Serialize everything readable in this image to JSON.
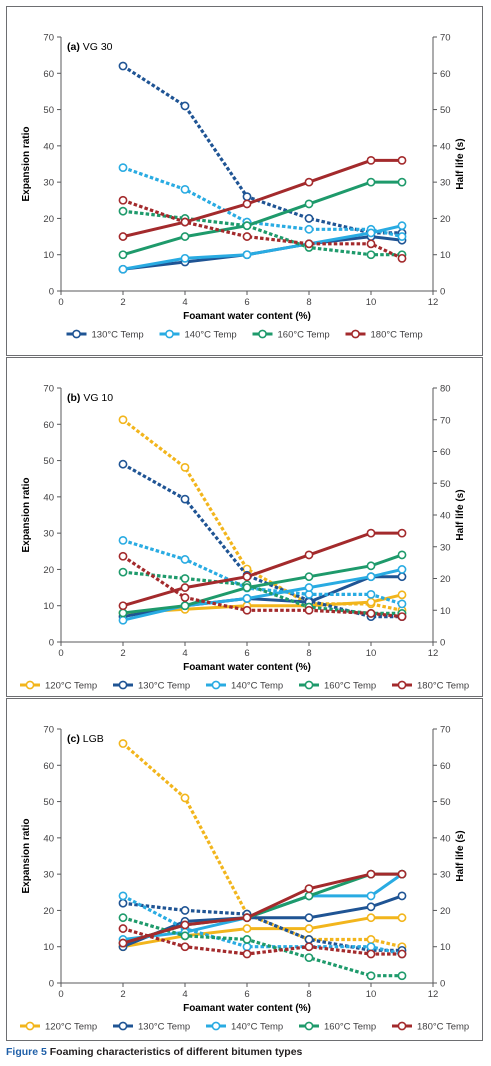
{
  "figure": {
    "caption_label": "Figure 5",
    "caption_text": " Foaming characteristics of different bitumen types"
  },
  "colors": {
    "120C": "#f2b51c",
    "130C": "#1f5494",
    "140C": "#29abe2",
    "160C": "#1e9a6b",
    "180C": "#a32a2c",
    "axis": "#58595b",
    "panel_border": "#6d6e71",
    "caption_label": "#1f5fa8"
  },
  "chart_data": [
    {
      "type": "line",
      "title": "(a) VG 30",
      "xlabel": "Foamant water content (%)",
      "ylabel": "Expansion ratio",
      "y2label": "Half life (s)",
      "xlim": [
        0,
        12
      ],
      "xticks": [
        0,
        2,
        4,
        6,
        8,
        10,
        12
      ],
      "ylim": [
        0,
        70
      ],
      "yticks": [
        0,
        10,
        20,
        30,
        40,
        50,
        60,
        70
      ],
      "y2lim": [
        0,
        70
      ],
      "y2ticks": [
        0,
        10,
        20,
        30,
        40,
        50,
        60,
        70
      ],
      "x": [
        2,
        4,
        6,
        8,
        10,
        11
      ],
      "legend": "bottom",
      "line_styles": {
        "solid": "Expansion ratio",
        "dashed": "Half life"
      },
      "series": [
        {
          "name": "130°C Temp",
          "key": "130C",
          "expansion": [
            6,
            8,
            10,
            13,
            15,
            14
          ],
          "half_life": [
            62,
            51,
            26,
            20,
            16,
            16
          ]
        },
        {
          "name": "140°C Temp",
          "key": "140C",
          "expansion": [
            6,
            9,
            10,
            13,
            16,
            18
          ],
          "half_life": [
            34,
            28,
            19,
            17,
            17,
            15
          ]
        },
        {
          "name": "160°C Temp",
          "key": "160C",
          "expansion": [
            10,
            15,
            18,
            24,
            30,
            30
          ],
          "half_life": [
            22,
            20,
            18,
            12,
            10,
            10
          ]
        },
        {
          "name": "180°C Temp",
          "key": "180C",
          "expansion": [
            15,
            19,
            24,
            30,
            36,
            36
          ],
          "half_life": [
            25,
            19,
            15,
            13,
            13,
            9
          ]
        }
      ]
    },
    {
      "type": "line",
      "title": "(b) VG 10",
      "xlabel": "Foamant water content (%)",
      "ylabel": "Expansion ratio",
      "y2label": "Half life (s)",
      "xlim": [
        0,
        12
      ],
      "xticks": [
        0,
        2,
        4,
        6,
        8,
        10,
        12
      ],
      "ylim": [
        0,
        70
      ],
      "yticks": [
        0,
        10,
        20,
        30,
        40,
        50,
        60,
        70
      ],
      "y2lim": [
        0,
        80
      ],
      "y2ticks": [
        0,
        10,
        20,
        30,
        40,
        50,
        60,
        70,
        80
      ],
      "x": [
        2,
        4,
        6,
        8,
        10,
        11
      ],
      "legend": "bottom",
      "line_styles": {
        "solid": "Expansion ratio",
        "dashed": "Half life"
      },
      "series": [
        {
          "name": "120°C Temp",
          "key": "120C",
          "expansion": [
            8,
            9,
            10,
            10,
            11,
            13
          ],
          "half_life": [
            70,
            55,
            23,
            12,
            12,
            10
          ]
        },
        {
          "name": "130°C Temp",
          "key": "130C",
          "expansion": [
            7,
            10,
            12,
            11,
            18,
            18
          ],
          "half_life": [
            56,
            45,
            21,
            13,
            8,
            8
          ]
        },
        {
          "name": "140°C Temp",
          "key": "140C",
          "expansion": [
            6,
            10,
            12,
            15,
            18,
            20
          ],
          "half_life": [
            32,
            26,
            17,
            15,
            15,
            12
          ]
        },
        {
          "name": "160°C Temp",
          "key": "160C",
          "expansion": [
            8,
            10,
            15,
            18,
            21,
            24
          ],
          "half_life": [
            22,
            20,
            18,
            11,
            9,
            9
          ]
        },
        {
          "name": "180°C Temp",
          "key": "180C",
          "expansion": [
            10,
            15,
            18,
            24,
            30,
            30
          ],
          "half_life": [
            27,
            14,
            10,
            10,
            9,
            8
          ]
        }
      ]
    },
    {
      "type": "line",
      "title": "(c) LGB",
      "xlabel": "Foamant water content (%)",
      "ylabel": "Expansion ratio",
      "y2label": "Half life (s)",
      "xlim": [
        0,
        12
      ],
      "xticks": [
        0,
        2,
        4,
        6,
        8,
        10,
        12
      ],
      "ylim": [
        0,
        70
      ],
      "yticks": [
        0,
        10,
        20,
        30,
        40,
        50,
        60,
        70
      ],
      "y2lim": [
        0,
        70
      ],
      "y2ticks": [
        0,
        10,
        20,
        30,
        40,
        50,
        60,
        70
      ],
      "x": [
        2,
        4,
        6,
        8,
        10,
        11
      ],
      "legend": "bottom",
      "line_styles": {
        "solid": "Expansion ratio",
        "dashed": "Half life"
      },
      "series": [
        {
          "name": "120°C Temp",
          "key": "120C",
          "expansion": [
            10,
            13,
            15,
            15,
            18,
            18
          ],
          "half_life": [
            66,
            51,
            19,
            12,
            12,
            10
          ]
        },
        {
          "name": "130°C Temp",
          "key": "130C",
          "expansion": [
            10,
            17,
            18,
            18,
            21,
            24
          ],
          "half_life": [
            22,
            20,
            19,
            12,
            9,
            9
          ]
        },
        {
          "name": "140°C Temp",
          "key": "140C",
          "expansion": [
            12,
            14,
            18,
            24,
            24,
            30
          ],
          "half_life": [
            24,
            15,
            10,
            10,
            10,
            8
          ]
        },
        {
          "name": "160°C Temp",
          "key": "160C",
          "expansion": [
            11,
            16,
            18,
            24,
            30,
            30
          ],
          "half_life": [
            18,
            13,
            12,
            7,
            2,
            2
          ]
        },
        {
          "name": "180°C Temp",
          "key": "180C",
          "expansion": [
            11,
            16,
            18,
            26,
            30,
            30
          ],
          "half_life": [
            15,
            10,
            8,
            10,
            8,
            8
          ]
        }
      ]
    }
  ]
}
